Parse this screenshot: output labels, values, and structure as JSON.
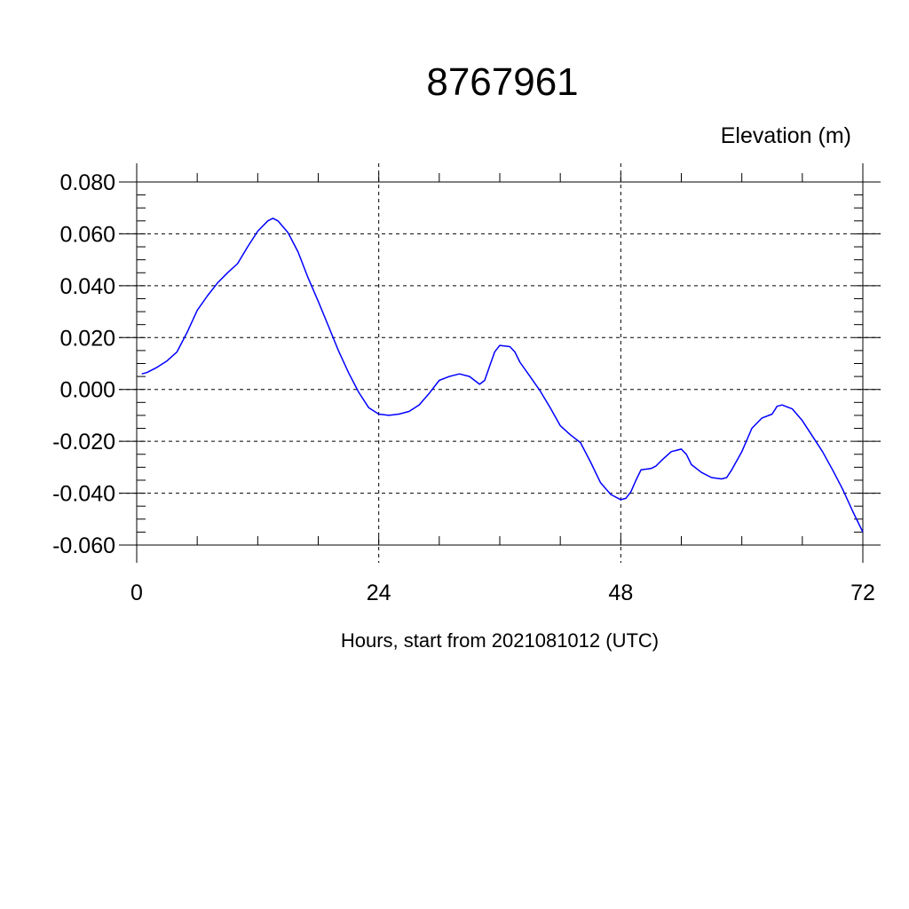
{
  "chart_data": {
    "type": "line",
    "title": "8767961",
    "ylabel": "Elevation (m)",
    "xlabel": "Hours, start from 2021081012 (UTC)",
    "xlim": [
      0,
      72
    ],
    "ylim": [
      -0.06,
      0.08
    ],
    "x_ticks": [
      0,
      24,
      48,
      72
    ],
    "x_tick_labels": [
      "0",
      "24",
      "48",
      "72"
    ],
    "y_ticks": [
      -0.06,
      -0.04,
      -0.02,
      0.0,
      0.02,
      0.04,
      0.06,
      0.08
    ],
    "y_tick_labels": [
      "-0.060",
      "-0.040",
      "-0.020",
      "0.000",
      "0.020",
      "0.040",
      "0.060",
      "0.080"
    ],
    "grid": true,
    "line_color": "#0000ff",
    "series": [
      {
        "x": [
          0.5,
          1,
          2,
          3,
          4,
          5,
          6,
          7,
          8,
          9,
          10,
          11,
          12,
          13,
          13.5,
          14,
          15,
          16,
          17,
          18,
          19,
          20,
          21,
          22,
          23,
          24,
          25,
          26,
          27,
          28,
          29,
          30,
          31,
          32,
          33,
          34,
          34.5,
          35,
          35.5,
          36,
          37,
          37.5,
          38,
          39,
          40,
          41,
          42,
          43,
          44,
          45,
          45.5,
          46,
          47,
          48,
          48.5,
          49,
          49.5,
          50,
          51,
          51.5,
          52,
          53,
          54,
          54.5,
          55,
          56,
          57,
          58,
          58.5,
          59,
          60,
          61,
          62,
          63,
          63.5,
          64,
          65,
          66,
          67,
          68,
          69,
          70,
          71,
          72
        ],
        "y": [
          0.006,
          0.0065,
          0.0085,
          0.011,
          0.0145,
          0.022,
          0.0305,
          0.036,
          0.041,
          0.045,
          0.0485,
          0.055,
          0.061,
          0.065,
          0.066,
          0.065,
          0.0605,
          0.053,
          0.043,
          0.034,
          0.0245,
          0.015,
          0.0065,
          -0.001,
          -0.007,
          -0.0095,
          -0.01,
          -0.0095,
          -0.0085,
          -0.006,
          -0.0015,
          0.0035,
          0.005,
          0.006,
          0.005,
          0.002,
          0.0035,
          0.009,
          0.0145,
          0.017,
          0.0165,
          0.0145,
          0.0105,
          0.005,
          -0.0005,
          -0.007,
          -0.014,
          -0.0175,
          -0.0205,
          -0.028,
          -0.032,
          -0.036,
          -0.0405,
          -0.0425,
          -0.042,
          -0.0395,
          -0.035,
          -0.031,
          -0.0305,
          -0.0295,
          -0.0275,
          -0.024,
          -0.023,
          -0.025,
          -0.029,
          -0.032,
          -0.034,
          -0.0345,
          -0.034,
          -0.031,
          -0.024,
          -0.015,
          -0.011,
          -0.0095,
          -0.0065,
          -0.006,
          -0.0075,
          -0.012,
          -0.018,
          -0.024,
          -0.031,
          -0.0385,
          -0.047,
          -0.055
        ]
      }
    ]
  }
}
